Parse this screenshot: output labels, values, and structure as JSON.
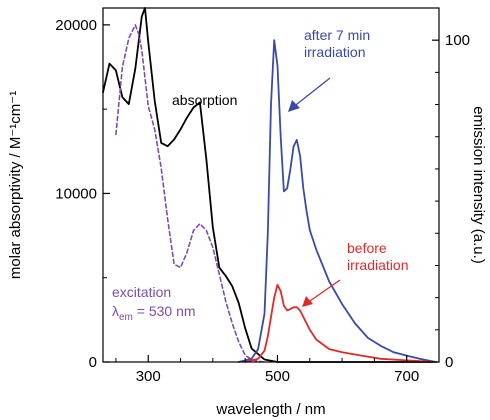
{
  "chart_data": {
    "type": "line",
    "xlabel": "wavelength / nm",
    "ylabel_left": "molar absorptivity / M⁻¹cm⁻¹",
    "ylabel_right": "emission intensity (a.u.)",
    "xlim": [
      230,
      750
    ],
    "ylim_left": [
      0,
      21000
    ],
    "ylim_right": [
      0,
      110
    ],
    "x_ticks": [
      300,
      500,
      700
    ],
    "y_left_ticks": [
      0,
      10000,
      20000
    ],
    "y_right_ticks": [
      0,
      100
    ],
    "grid": false,
    "colors": {
      "absorption": "#000000",
      "excitation": "#7b4fa8",
      "after": "#3a4aa8",
      "before": "#e02a2a"
    },
    "annotations": {
      "absorption": "absorption",
      "excitation": "excitation",
      "excitation_lambda": "λ",
      "excitation_em": "em",
      "excitation_value": " = 530 nm",
      "after_line1": "after 7 min",
      "after_line2": "irradiation",
      "before_line1": "before",
      "before_line2": "irradiation"
    },
    "series": [
      {
        "name": "absorption",
        "axis": "left",
        "style": "solid",
        "x": [
          230,
          240,
          250,
          260,
          270,
          280,
          290,
          295,
          300,
          310,
          320,
          330,
          340,
          350,
          360,
          370,
          380,
          390,
          400,
          410,
          420,
          430,
          440,
          450,
          460,
          480,
          500,
          550,
          600,
          700,
          740
        ],
        "y": [
          16000,
          17700,
          17300,
          15700,
          15300,
          17400,
          20500,
          21000,
          19000,
          15500,
          13000,
          12800,
          13200,
          13800,
          14500,
          15100,
          15400,
          12000,
          8000,
          5600,
          5100,
          4500,
          3500,
          2000,
          800,
          150,
          0,
          0,
          0,
          0,
          0
        ]
      },
      {
        "name": "excitation",
        "axis": "left",
        "style": "dashed",
        "x": [
          250,
          260,
          270,
          280,
          285,
          290,
          300,
          310,
          320,
          330,
          340,
          350,
          360,
          370,
          380,
          390,
          400,
          410,
          420,
          430,
          440,
          450,
          460,
          470,
          480
        ],
        "y": [
          13500,
          17500,
          19200,
          20000,
          19500,
          18500,
          15200,
          13800,
          11500,
          8500,
          5800,
          5600,
          6500,
          7800,
          8200,
          7800,
          6800,
          5200,
          3600,
          2300,
          1200,
          400,
          150,
          50,
          0
        ]
      },
      {
        "name": "after 7 min irradiation",
        "axis": "right",
        "style": "solid",
        "x": [
          440,
          460,
          470,
          480,
          485,
          490,
          495,
          500,
          505,
          510,
          515,
          520,
          525,
          530,
          535,
          540,
          545,
          550,
          560,
          570,
          580,
          600,
          620,
          640,
          660,
          680,
          700,
          720,
          745
        ],
        "y": [
          0,
          1,
          4,
          15,
          40,
          80,
          100,
          92,
          70,
          53,
          54,
          60,
          67,
          69,
          64,
          54,
          47,
          41,
          35,
          30,
          25,
          18,
          12,
          7.5,
          5,
          3,
          2,
          1,
          0
        ]
      },
      {
        "name": "before irradiation",
        "axis": "right",
        "style": "solid",
        "x": [
          450,
          470,
          480,
          485,
          490,
          495,
          500,
          505,
          510,
          515,
          520,
          525,
          530,
          535,
          540,
          550,
          560,
          580,
          600,
          630,
          660,
          700,
          745
        ],
        "y": [
          0,
          1,
          3.5,
          8,
          14,
          20,
          24,
          22,
          17.5,
          16,
          16.5,
          17,
          17,
          16,
          14,
          10,
          7,
          4,
          3,
          2,
          1,
          0.5,
          0
        ]
      }
    ]
  }
}
